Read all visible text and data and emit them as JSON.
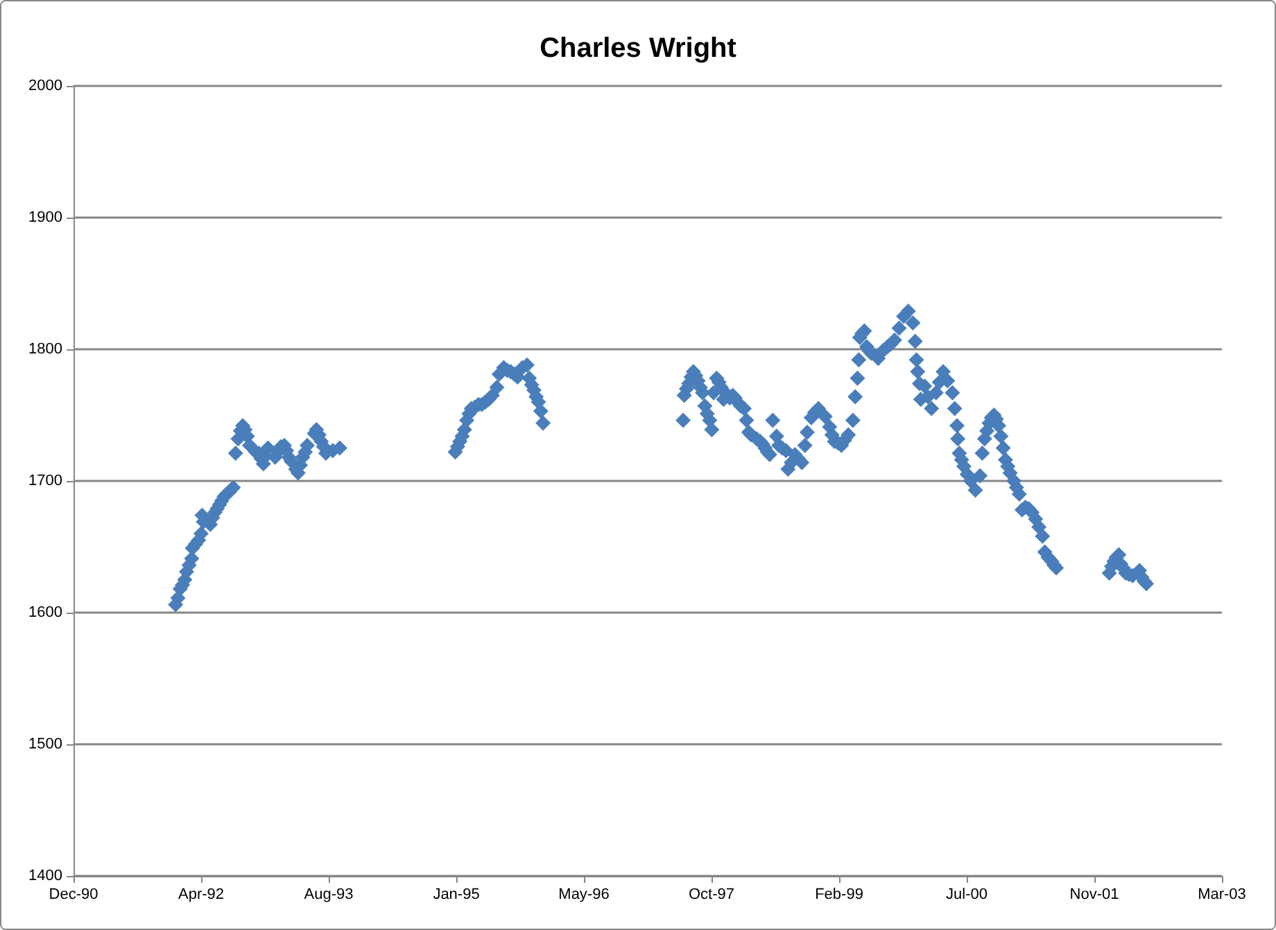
{
  "chart_data": {
    "type": "scatter",
    "title": "Charles Wright",
    "color": "#4a7ebb",
    "marker": "diamond",
    "grid": "y",
    "xlim": [
      "1990-12-01",
      "2003-03-28"
    ],
    "xticks": [
      {
        "value": "1990-12-01",
        "label": "Dec-90"
      },
      {
        "value": "1992-04-14",
        "label": "Apr-92"
      },
      {
        "value": "1993-08-27",
        "label": "Aug-93"
      },
      {
        "value": "1995-01-09",
        "label": "Jan-95"
      },
      {
        "value": "1996-05-23",
        "label": "May-96"
      },
      {
        "value": "1997-10-05",
        "label": "Oct-97"
      },
      {
        "value": "1999-02-17",
        "label": "Feb-99"
      },
      {
        "value": "2000-07-01",
        "label": "Jul-00"
      },
      {
        "value": "2001-11-13",
        "label": "Nov-01"
      },
      {
        "value": "2003-03-28",
        "label": "Mar-03"
      }
    ],
    "ylim": [
      1400,
      2000
    ],
    "yticks": [
      1400,
      1500,
      1600,
      1700,
      1800,
      1900,
      2000
    ],
    "x": [
      "1992-01-05",
      "1992-01-14",
      "1992-01-23",
      "1992-02-01",
      "1992-02-10",
      "1992-02-17",
      "1992-02-27",
      "1992-03-08",
      "1992-03-11",
      "1992-03-23",
      "1992-04-04",
      "1992-04-14",
      "1992-04-18",
      "1992-04-23",
      "1992-05-20",
      "1992-05-29",
      "1992-06-07",
      "1992-06-16",
      "1992-06-25",
      "1992-07-04",
      "1992-07-13",
      "1992-07-22",
      "1992-08-04",
      "1992-08-18",
      "1992-08-27",
      "1992-09-06",
      "1992-09-15",
      "1992-09-24",
      "1992-10-03",
      "1992-10-12",
      "1992-10-21",
      "1992-11-14",
      "1992-11-26",
      "1992-12-05",
      "1992-12-14",
      "1992-12-23",
      "1993-01-01",
      "1993-01-29",
      "1993-02-09",
      "1993-02-21",
      "1993-03-06",
      "1993-03-15",
      "1993-03-24",
      "1993-04-02",
      "1993-04-20",
      "1993-04-29",
      "1993-05-08",
      "1993-05-17",
      "1993-05-27",
      "1993-06-04",
      "1993-07-02",
      "1993-07-10",
      "1993-07-20",
      "1993-07-29",
      "1993-08-07",
      "1993-08-16",
      "1993-09-12",
      "1993-10-09",
      "1995-01-05",
      "1995-01-14",
      "1995-01-23",
      "1995-02-01",
      "1995-02-10",
      "1995-02-19",
      "1995-02-28",
      "1995-03-09",
      "1995-03-23",
      "1995-04-06",
      "1995-04-19",
      "1995-05-03",
      "1995-05-16",
      "1995-05-30",
      "1995-06-17",
      "1995-06-26",
      "1995-07-14",
      "1995-07-28",
      "1995-08-10",
      "1995-08-24",
      "1995-09-06",
      "1995-09-25",
      "1995-10-13",
      "1995-10-22",
      "1995-10-31",
      "1995-11-09",
      "1995-11-18",
      "1995-11-27",
      "1995-12-06",
      "1995-12-15",
      "1997-06-16",
      "1997-06-20",
      "1997-06-29",
      "1997-07-08",
      "1997-07-17",
      "1997-07-26",
      "1997-08-04",
      "1997-08-13",
      "1997-08-22",
      "1997-08-31",
      "1997-09-09",
      "1997-09-18",
      "1997-09-28",
      "1997-10-06",
      "1997-10-13",
      "1997-10-25",
      "1997-11-03",
      "1997-11-12",
      "1997-11-21",
      "1997-12-03",
      "1997-12-15",
      "1997-12-27",
      "1998-01-05",
      "1998-01-14",
      "1998-01-27",
      "1998-02-10",
      "1998-02-19",
      "1998-02-28",
      "1998-03-09",
      "1998-03-31",
      "1998-04-14",
      "1998-04-23",
      "1998-05-03",
      "1998-05-12",
      "1998-05-21",
      "1998-06-02",
      "1998-06-17",
      "1998-06-26",
      "1998-07-09",
      "1998-07-24",
      "1998-08-01",
      "1998-08-14",
      "1998-08-28",
      "1998-09-10",
      "1998-09-24",
      "1998-10-06",
      "1998-10-15",
      "1998-10-31",
      "1998-11-13",
      "1998-11-28",
      "1998-12-24",
      "1999-01-11",
      "1999-01-20",
      "1999-01-30",
      "1999-02-12",
      "1999-02-26",
      "1999-03-11",
      "1999-03-25",
      "1999-04-12",
      "1999-04-21",
      "1999-04-30",
      "1999-05-05",
      "1999-05-09",
      "1999-05-18",
      "1999-05-27",
      "1999-06-05",
      "1999-06-14",
      "1999-06-23",
      "1999-07-20",
      "1999-08-08",
      "1999-08-26",
      "1999-09-08",
      "1999-09-22",
      "1999-10-10",
      "1999-10-28",
      "1999-11-15",
      "1999-12-03",
      "1999-12-12",
      "1999-12-17",
      "1999-12-22",
      "1999-12-29",
      "2000-01-03",
      "2000-01-18",
      "2000-01-31",
      "2000-02-14",
      "2000-03-03",
      "2000-03-16",
      "2000-03-31",
      "2000-04-17",
      "2000-05-06",
      "2000-05-15",
      "2000-05-24",
      "2000-05-27",
      "2000-06-02",
      "2000-06-11",
      "2000-06-20",
      "2000-07-03",
      "2000-07-17",
      "2000-08-04",
      "2000-08-22",
      "2000-08-31",
      "2000-09-09",
      "2000-09-18",
      "2000-09-27",
      "2000-10-06",
      "2000-10-16",
      "2000-10-25",
      "2000-11-03",
      "2000-11-12",
      "2000-11-21",
      "2000-11-30",
      "2000-12-09",
      "2000-12-18",
      "2001-01-02",
      "2001-01-12",
      "2001-01-23",
      "2001-02-03",
      "2001-02-16",
      "2001-03-01",
      "2001-03-14",
      "2001-03-28",
      "2001-04-10",
      "2001-04-24",
      "2001-05-03",
      "2001-05-16",
      "2001-05-30",
      "2001-06-08",
      "2001-06-17",
      "2002-01-11",
      "2002-01-20",
      "2002-01-29",
      "2002-02-07",
      "2002-02-17",
      "2002-02-25",
      "2002-03-06",
      "2002-03-16",
      "2002-03-29",
      "2002-04-12",
      "2002-05-09",
      "2002-05-18",
      "2002-05-27",
      "2002-06-05"
    ],
    "values": [
      1606,
      1611,
      1618,
      1621,
      1625,
      1631,
      1636,
      1641,
      1649,
      1652,
      1655,
      1660,
      1674,
      1669,
      1667,
      1672,
      1676,
      1679,
      1682,
      1685,
      1688,
      1690,
      1692,
      1695,
      1721,
      1732,
      1738,
      1742,
      1739,
      1734,
      1727,
      1722,
      1721,
      1717,
      1713,
      1719,
      1725,
      1718,
      1722,
      1726,
      1727,
      1723,
      1718,
      1715,
      1709,
      1706,
      1712,
      1718,
      1722,
      1727,
      1736,
      1739,
      1735,
      1730,
      1726,
      1721,
      1723,
      1725,
      1722,
      1726,
      1730,
      1734,
      1739,
      1746,
      1751,
      1755,
      1756,
      1758,
      1758,
      1760,
      1762,
      1765,
      1771,
      1781,
      1786,
      1784,
      1783,
      1781,
      1779,
      1786,
      1788,
      1778,
      1773,
      1769,
      1764,
      1760,
      1753,
      1744,
      1746,
      1765,
      1770,
      1774,
      1779,
      1783,
      1780,
      1776,
      1771,
      1767,
      1757,
      1751,
      1746,
      1739,
      1767,
      1778,
      1775,
      1771,
      1762,
      1766,
      1763,
      1765,
      1763,
      1760,
      1757,
      1755,
      1746,
      1737,
      1735,
      1732,
      1730,
      1728,
      1725,
      1722,
      1720,
      1746,
      1734,
      1727,
      1725,
      1723,
      1709,
      1714,
      1720,
      1717,
      1714,
      1727,
      1737,
      1748,
      1752,
      1755,
      1749,
      1741,
      1735,
      1730,
      1729,
      1727,
      1731,
      1735,
      1746,
      1764,
      1778,
      1792,
      1809,
      1812,
      1814,
      1802,
      1799,
      1797,
      1793,
      1799,
      1802,
      1804,
      1807,
      1816,
      1825,
      1829,
      1820,
      1806,
      1792,
      1783,
      1774,
      1762,
      1772,
      1764,
      1755,
      1767,
      1775,
      1783,
      1776,
      1767,
      1755,
      1742,
      1732,
      1721,
      1716,
      1711,
      1705,
      1700,
      1693,
      1704,
      1721,
      1732,
      1738,
      1744,
      1748,
      1750,
      1747,
      1742,
      1734,
      1725,
      1716,
      1711,
      1706,
      1700,
      1695,
      1690,
      1678,
      1680,
      1679,
      1676,
      1671,
      1665,
      1658,
      1646,
      1642,
      1639,
      1636,
      1634,
      1630,
      1635,
      1639,
      1642,
      1644,
      1637,
      1634,
      1630,
      1629,
      1628,
      1632,
      1627,
      1624,
      1622
    ]
  }
}
